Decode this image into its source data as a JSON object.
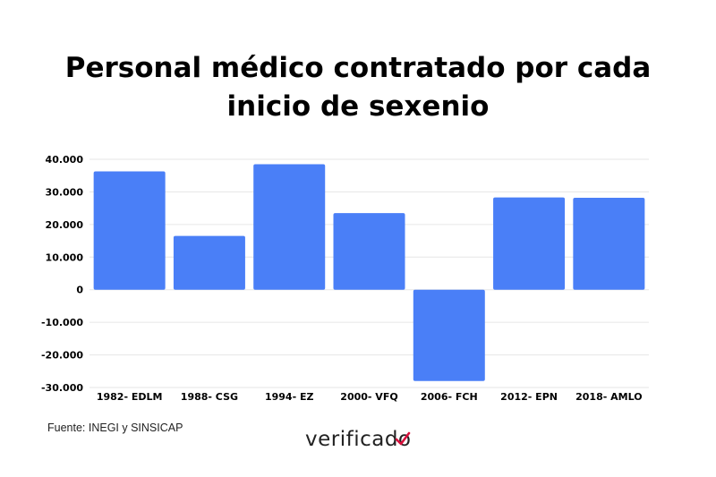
{
  "chart_data": {
    "type": "bar",
    "title_lines": [
      "Personal médico contratado por cada",
      "inicio de sexenio"
    ],
    "categories": [
      "1982- EDLM",
      "1988- CSG",
      "1994- EZ",
      "2000- VFQ",
      "2006- FCH",
      "2012- EPN",
      "2018- AMLO"
    ],
    "values": [
      36300,
      16500,
      38500,
      23500,
      -28000,
      28300,
      28200
    ],
    "ylim": [
      -30000,
      40000
    ],
    "yticks": [
      40000,
      30000,
      20000,
      10000,
      0,
      -10000,
      -20000,
      -30000
    ],
    "ytick_labels": [
      "40.000",
      "30.000",
      "20.000",
      "10.000",
      "0",
      "-10.000",
      "-20.000",
      "-30.000"
    ],
    "grid": true,
    "xlabel": "",
    "ylabel": "",
    "colors": {
      "bar": "#4a7ff7",
      "grid": "#e6e6e6",
      "text": "#000000"
    }
  },
  "footer": {
    "source": "Fuente: INEGI y SINSICAP",
    "logo_text": "verificado",
    "logo_check_color": "#d8103c"
  }
}
